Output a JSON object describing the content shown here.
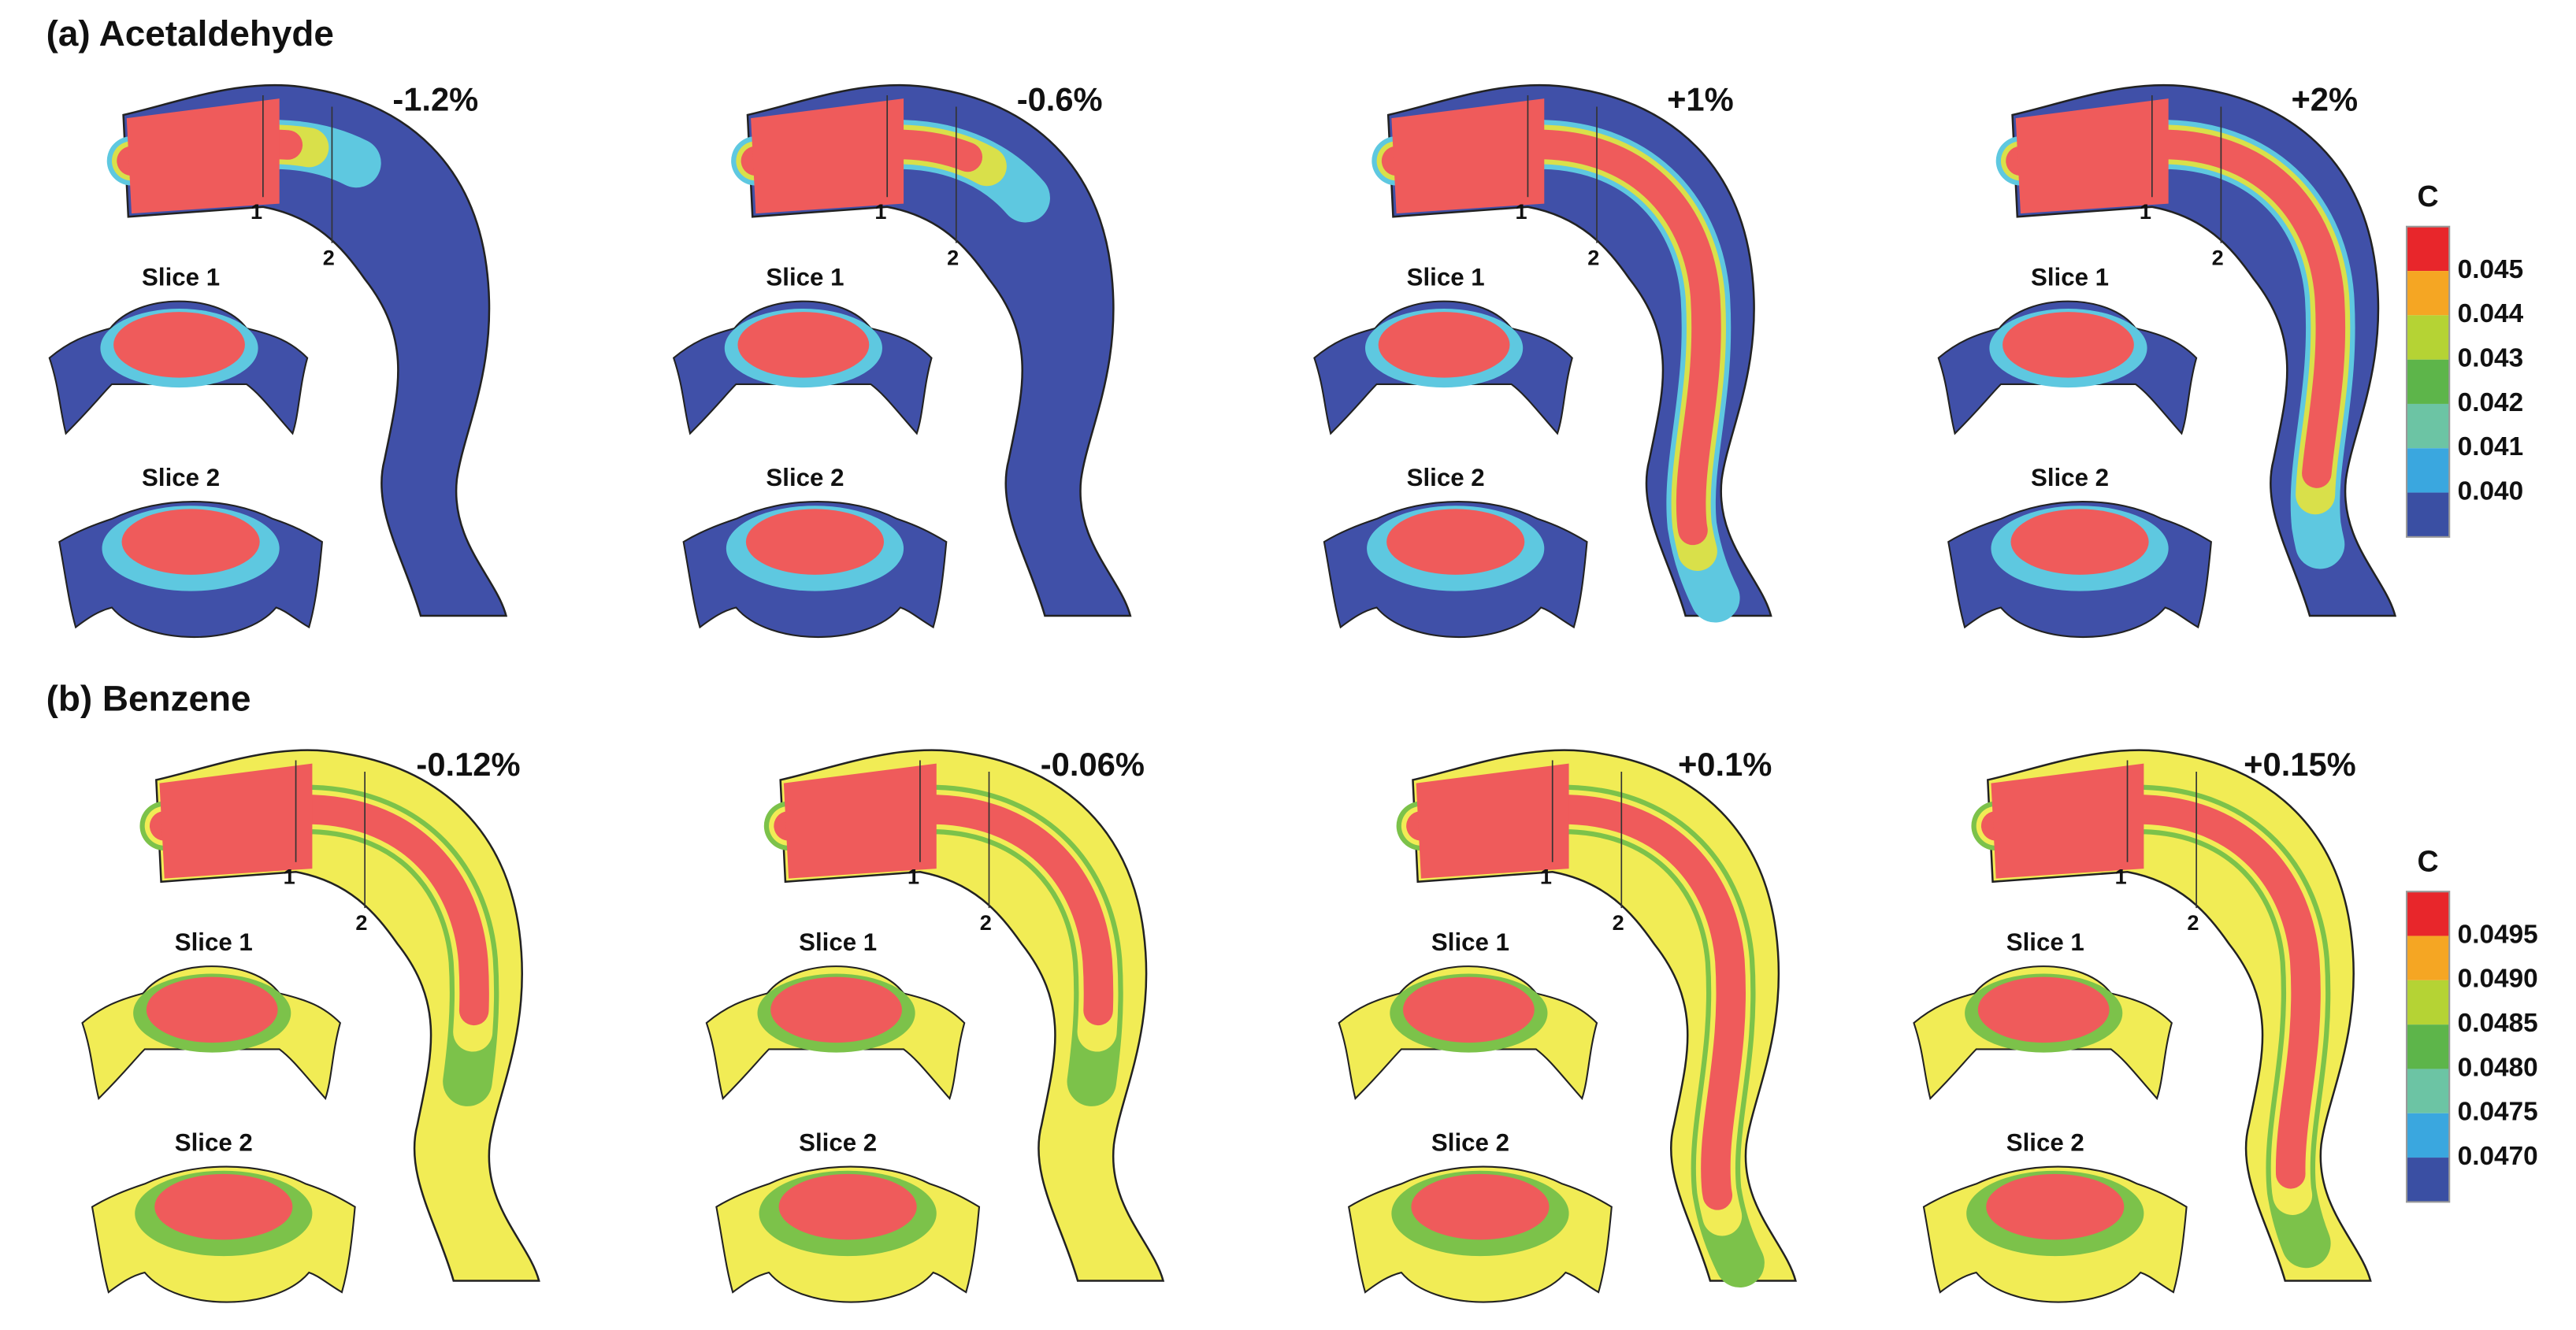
{
  "panels": [
    {
      "title": "(a) Acetaldehyde",
      "cases": [
        {
          "label": "-1.2%",
          "slice1": "Slice 1",
          "slice2": "Slice 2",
          "marker1": "1",
          "marker2": "2"
        },
        {
          "label": "-0.6%",
          "slice1": "Slice 1",
          "slice2": "Slice 2",
          "marker1": "1",
          "marker2": "2"
        },
        {
          "label": "+1%",
          "slice1": "Slice 1",
          "slice2": "Slice 2",
          "marker1": "1",
          "marker2": "2"
        },
        {
          "label": "+2%",
          "slice1": "Slice 1",
          "slice2": "Slice 2",
          "marker1": "1",
          "marker2": "2"
        }
      ],
      "colorbar": {
        "title": "C",
        "ticks": [
          "0.045",
          "0.044",
          "0.043",
          "0.042",
          "0.041",
          "0.040"
        ],
        "colors": [
          "#e8262b",
          "#f5a623",
          "#b5d334",
          "#5db54a",
          "#6cc4a4",
          "#3aa7df",
          "#3a4fa3"
        ]
      }
    },
    {
      "title": "(b) Benzene",
      "cases": [
        {
          "label": "-0.12%",
          "slice1": "Slice 1",
          "slice2": "Slice 2",
          "marker1": "1",
          "marker2": "2"
        },
        {
          "label": "-0.06%",
          "slice1": "Slice 1",
          "slice2": "Slice 2",
          "marker1": "1",
          "marker2": "2"
        },
        {
          "label": "+0.1%",
          "slice1": "Slice 1",
          "slice2": "Slice 2",
          "marker1": "1",
          "marker2": "2"
        },
        {
          "label": "+0.15%",
          "slice1": "Slice 1",
          "slice2": "Slice 2",
          "marker1": "1",
          "marker2": "2"
        }
      ],
      "colorbar": {
        "title": "C",
        "ticks": [
          "0.0495",
          "0.0490",
          "0.0485",
          "0.0480",
          "0.0475",
          "0.0470"
        ],
        "colors": [
          "#e8262b",
          "#f5a623",
          "#b5d334",
          "#5db54a",
          "#6cc4a4",
          "#3aa7df",
          "#3a4fa3"
        ]
      }
    }
  ]
}
